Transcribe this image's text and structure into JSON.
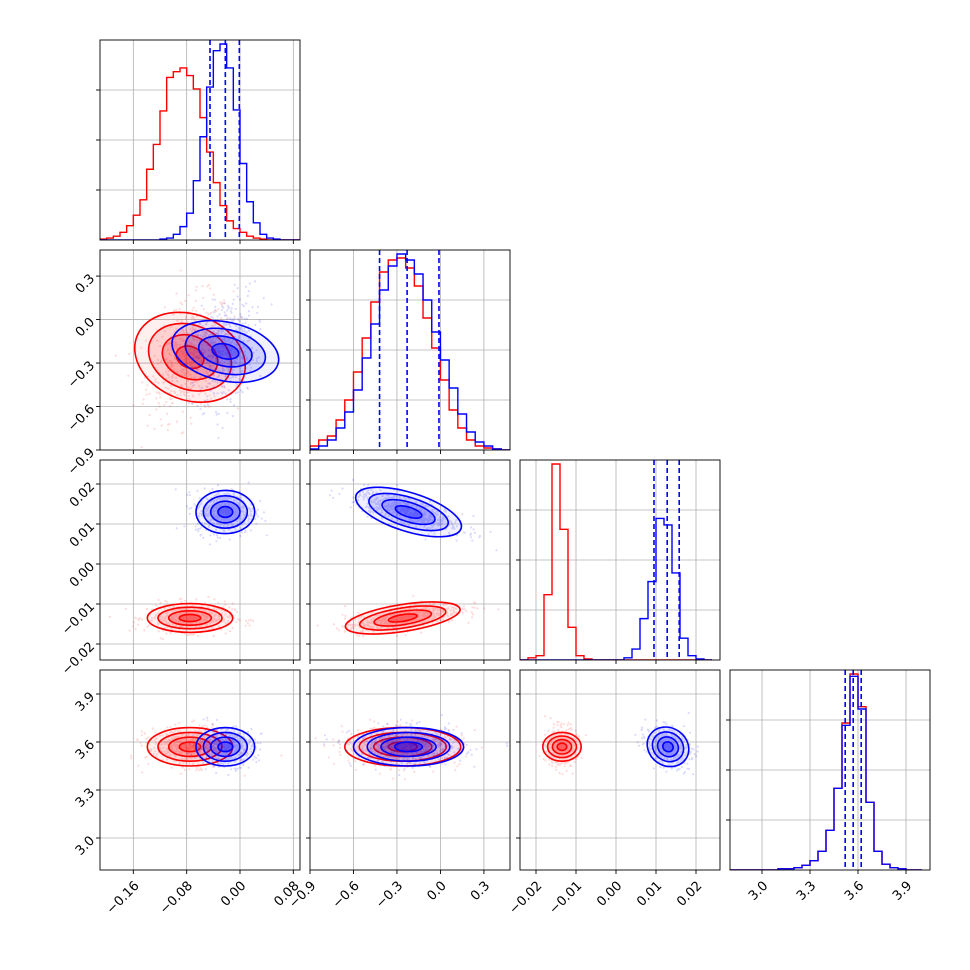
{
  "chart_data": {
    "type": "scatter",
    "title": "",
    "series": [
      {
        "color": "#ff0000"
      },
      {
        "color": "#0000ff"
      }
    ],
    "quantile_line_color": "#0000ff",
    "grid": true,
    "parameters": [
      {
        "range": [
          -0.21,
          0.09
        ],
        "ticks": [
          "−0.16",
          "−0.08",
          "0.00",
          "0.08"
        ],
        "tick_values": [
          -0.16,
          -0.08,
          0.0,
          0.08
        ]
      },
      {
        "range": [
          -0.9,
          0.48
        ],
        "ticks": [
          "−0.9",
          "−0.6",
          "−0.3",
          "0.0",
          "0.3"
        ],
        "tick_values": [
          -0.9,
          -0.6,
          -0.3,
          0.0,
          0.3
        ]
      },
      {
        "range": [
          -0.024,
          0.026
        ],
        "ticks": [
          "−0.02",
          "−0.01",
          "0.00",
          "0.01",
          "0.02"
        ],
        "tick_values": [
          -0.02,
          -0.01,
          0.0,
          0.01,
          0.02
        ]
      },
      {
        "range": [
          2.8,
          4.05
        ],
        "ticks": [
          "3.0",
          "3.3",
          "3.6",
          "3.9"
        ],
        "tick_values": [
          3.0,
          3.3,
          3.6,
          3.9
        ]
      }
    ],
    "distributions": [
      {
        "name_index": 0,
        "mean": [
          -0.075,
          -0.26,
          -0.0135,
          3.57
        ],
        "std": [
          0.032,
          0.2,
          0.0018,
          0.06
        ],
        "corr": [
          [
            1,
            0.3,
            0,
            0
          ],
          [
            0.3,
            1,
            0.6,
            0
          ],
          [
            0,
            0.6,
            1,
            0
          ],
          [
            0,
            0,
            0,
            1
          ]
        ]
      },
      {
        "name_index": 1,
        "mean": [
          -0.022,
          -0.22,
          0.013,
          3.57
        ],
        "std": [
          0.022,
          0.19,
          0.0027,
          0.06
        ],
        "corr": [
          [
            1,
            0.3,
            0,
            0
          ],
          [
            0.3,
            1,
            -0.75,
            0
          ],
          [
            0,
            -0.75,
            1,
            -0.3
          ],
          [
            0,
            0,
            -0.3,
            1
          ]
        ]
      }
    ],
    "quantiles": [
      [
        -0.045,
        -0.022,
        -0.001
      ],
      [
        -0.42,
        -0.23,
        -0.01
      ],
      [
        0.0095,
        0.0128,
        0.0158
      ],
      [
        3.52,
        3.57,
        3.62
      ]
    ],
    "histograms": [
      {
        "bins": [
          -0.21,
          -0.2,
          -0.19,
          -0.18,
          -0.17,
          -0.16,
          -0.15,
          -0.14,
          -0.13,
          -0.12,
          -0.11,
          -0.1,
          -0.09,
          -0.08,
          -0.07,
          -0.06,
          -0.05,
          -0.04,
          -0.03,
          -0.02,
          -0.01,
          0.0,
          0.01,
          0.02,
          0.03,
          0.04,
          0.05,
          0.06,
          0.07,
          0.08,
          0.09
        ],
        "red": [
          1,
          2,
          4,
          8,
          15,
          26,
          42,
          74,
          100,
          135,
          170,
          176,
          180,
          172,
          158,
          128,
          92,
          60,
          36,
          20,
          12,
          8,
          4,
          2,
          1,
          0,
          0,
          0,
          0,
          0
        ],
        "blue": [
          0,
          0,
          0,
          0,
          0,
          0,
          0,
          0,
          0,
          1,
          2,
          6,
          14,
          28,
          62,
          108,
          160,
          198,
          205,
          180,
          136,
          80,
          40,
          18,
          6,
          2,
          1,
          0,
          0,
          0
        ]
      },
      {
        "bins": [
          -0.9,
          -0.84,
          -0.78,
          -0.72,
          -0.66,
          -0.6,
          -0.54,
          -0.48,
          -0.42,
          -0.36,
          -0.3,
          -0.24,
          -0.18,
          -0.12,
          -0.06,
          0.0,
          0.06,
          0.12,
          0.18,
          0.24,
          0.3,
          0.36,
          0.42,
          0.48
        ],
        "red": [
          4,
          10,
          14,
          30,
          50,
          78,
          112,
          148,
          178,
          190,
          192,
          182,
          164,
          132,
          102,
          70,
          40,
          22,
          10,
          4,
          2,
          1,
          0
        ],
        "blue": [
          1,
          4,
          10,
          22,
          38,
          60,
          92,
          126,
          160,
          184,
          196,
          190,
          176,
          150,
          118,
          90,
          62,
          36,
          18,
          8,
          4,
          1,
          0
        ]
      },
      {
        "bins": [
          -0.024,
          -0.022,
          -0.02,
          -0.018,
          -0.016,
          -0.014,
          -0.012,
          -0.01,
          -0.008,
          -0.006,
          -0.004,
          -0.002,
          0.0,
          0.002,
          0.004,
          0.006,
          0.008,
          0.01,
          0.012,
          0.014,
          0.016,
          0.018,
          0.02,
          0.022,
          0.024
        ],
        "red": [
          0,
          2,
          4,
          60,
          180,
          120,
          30,
          4,
          1,
          0,
          0,
          0,
          0,
          0,
          0,
          0,
          0,
          0,
          0,
          0,
          0,
          0,
          0,
          0
        ],
        "blue": [
          0,
          0,
          0,
          0,
          0,
          0,
          0,
          0,
          0,
          0,
          0,
          0,
          0,
          2,
          10,
          38,
          72,
          130,
          124,
          80,
          20,
          4,
          1,
          0
        ]
      },
      {
        "bins": [
          2.8,
          2.85,
          2.9,
          2.95,
          3.0,
          3.05,
          3.1,
          3.15,
          3.2,
          3.25,
          3.3,
          3.35,
          3.4,
          3.45,
          3.5,
          3.55,
          3.6,
          3.65,
          3.7,
          3.75,
          3.8,
          3.85,
          3.9,
          3.95,
          4.0
        ],
        "red": [
          0,
          0,
          0,
          0,
          0,
          0,
          1,
          1,
          2,
          4,
          8,
          16,
          34,
          70,
          126,
          168,
          140,
          58,
          16,
          5,
          2,
          1,
          0,
          0
        ],
        "blue": [
          0,
          0,
          0,
          0,
          0,
          0,
          1,
          1,
          2,
          4,
          8,
          16,
          34,
          70,
          124,
          166,
          138,
          58,
          16,
          5,
          2,
          1,
          0,
          0
        ]
      }
    ]
  }
}
